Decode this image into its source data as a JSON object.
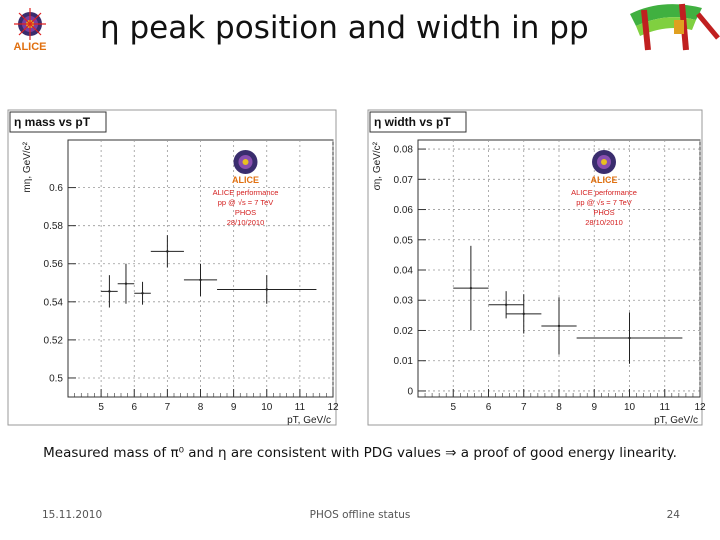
{
  "slide": {
    "title": "η peak position and width in pp",
    "caption": "Measured mass of π⁰ and η  are consistent with PDG values ⇒ a proof of good energy linearity.",
    "footer_date": "15.11.2010",
    "footer_center": "PHOS offline status",
    "page_number": "24",
    "logo_text": "ALICE"
  },
  "watermark": {
    "logo_text": "ALICE",
    "lines": [
      "ALICE performance",
      "pp @ √s = 7 TeV",
      "PHOS",
      "28/10/2010"
    ],
    "color": "#d42020"
  },
  "chart_data": [
    {
      "type": "scatter",
      "title": "η mass vs pT",
      "ylabel": "mη, GeV/c²",
      "xlabel": "pT, GeV/c",
      "xlim": [
        4,
        12
      ],
      "ylim": [
        0.49,
        0.625
      ],
      "xticks": [
        5,
        6,
        7,
        8,
        9,
        10,
        11,
        12
      ],
      "yticks": [
        0.5,
        0.52,
        0.54,
        0.56,
        0.58,
        0.6
      ],
      "ytick_labels": [
        "0.5",
        "0.52",
        "0.54",
        "0.56",
        "0.58",
        "0.6"
      ],
      "grid": true,
      "points": [
        {
          "x": 5.25,
          "y": 0.5455,
          "xerr": 0.25,
          "yerr": 0.0085
        },
        {
          "x": 5.75,
          "y": 0.5495,
          "xerr": 0.25,
          "yerr": 0.0105
        },
        {
          "x": 6.25,
          "y": 0.5445,
          "xerr": 0.25,
          "yerr": 0.006
        },
        {
          "x": 7.0,
          "y": 0.5665,
          "xerr": 0.5,
          "yerr": 0.0085
        },
        {
          "x": 8.0,
          "y": 0.5515,
          "xerr": 0.5,
          "yerr": 0.0085
        },
        {
          "x": 10.0,
          "y": 0.5465,
          "xerr": 1.5,
          "yerr": 0.0075
        }
      ]
    },
    {
      "type": "scatter",
      "title": "η width vs pT",
      "ylabel": "ση, GeV/c²",
      "xlabel": "pT, GeV/c",
      "xlim": [
        4,
        12
      ],
      "ylim": [
        -0.002,
        0.083
      ],
      "xticks": [
        5,
        6,
        7,
        8,
        9,
        10,
        11,
        12
      ],
      "yticks": [
        0,
        0.01,
        0.02,
        0.03,
        0.04,
        0.05,
        0.06,
        0.07,
        0.08
      ],
      "ytick_labels": [
        "0",
        "0.01",
        "0.02",
        "0.03",
        "0.04",
        "0.05",
        "0.06",
        "0.07",
        "0.08"
      ],
      "grid": true,
      "points": [
        {
          "x": 5.5,
          "y": 0.034,
          "xerr": 0.5,
          "yerr": 0.014
        },
        {
          "x": 6.5,
          "y": 0.0285,
          "xerr": 0.5,
          "yerr": 0.0045
        },
        {
          "x": 7.0,
          "y": 0.0255,
          "xerr": 0.5,
          "yerr": 0.0065
        },
        {
          "x": 8.0,
          "y": 0.0215,
          "xerr": 0.5,
          "yerr": 0.0095
        },
        {
          "x": 10.0,
          "y": 0.0175,
          "xerr": 1.5,
          "yerr": 0.0085
        }
      ]
    }
  ]
}
